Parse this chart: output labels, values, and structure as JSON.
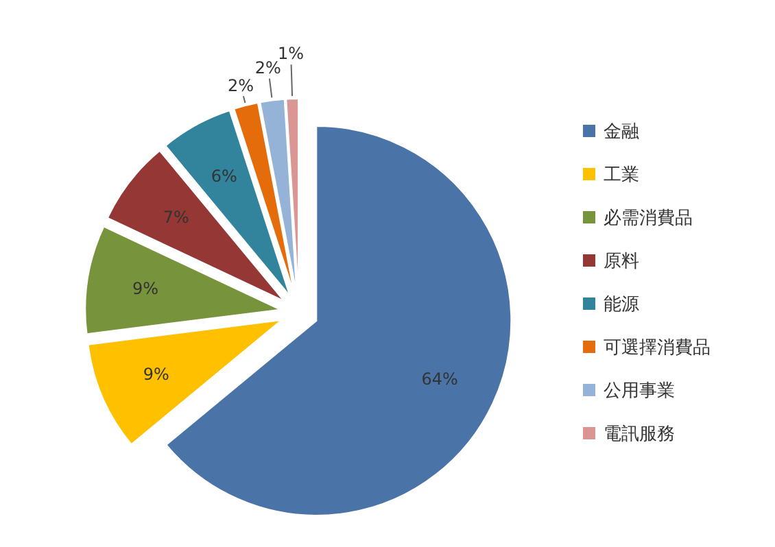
{
  "chart_data": {
    "type": "pie",
    "categories": [
      "金融",
      "工業",
      "必需消費品",
      "原料",
      "能源",
      "可選擇消費品",
      "公用事業",
      "電訊服務"
    ],
    "values": [
      64,
      9,
      9,
      7,
      6,
      2,
      2,
      1
    ],
    "value_labels": [
      "64%",
      "9%",
      "9%",
      "7%",
      "6%",
      "2%",
      "2%",
      "1%"
    ],
    "colors": [
      "#4a74a8",
      "#ffc000",
      "#77933c",
      "#953735",
      "#31849b",
      "#e46c0a",
      "#95b3d7",
      "#d99694"
    ],
    "legend": "right"
  }
}
